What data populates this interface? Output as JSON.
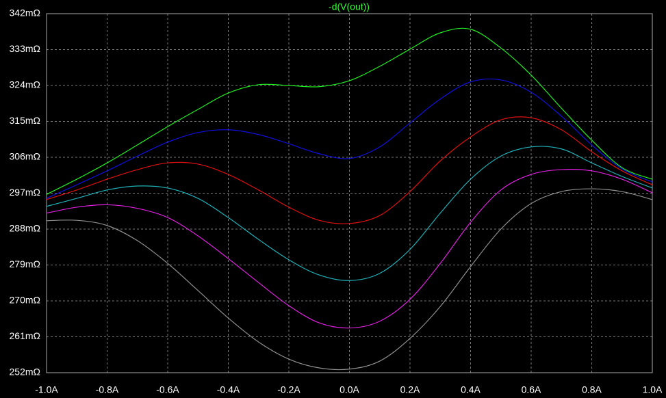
{
  "chart_data": {
    "type": "line",
    "title": "-d(V(out))",
    "x": [
      -1.0,
      -0.9,
      -0.8,
      -0.7,
      -0.6,
      -0.5,
      -0.4,
      -0.3,
      -0.2,
      -0.1,
      0.0,
      0.1,
      0.2,
      0.3,
      0.4,
      0.5,
      0.6,
      0.7,
      0.8,
      0.9,
      1.0
    ],
    "series": [
      {
        "color": "#22ee22",
        "values": [
          296.7,
          300.5,
          304.6,
          309.1,
          313.7,
          318.0,
          322.1,
          324.2,
          324.0,
          323.7,
          325.2,
          328.8,
          333.1,
          337.2,
          338.1,
          333.4,
          326.6,
          318.3,
          310.3,
          303.4,
          300.5
        ]
      },
      {
        "color": "#1010e0",
        "values": [
          295.7,
          299.1,
          302.6,
          306.3,
          309.8,
          312.2,
          312.9,
          311.7,
          309.4,
          306.9,
          305.7,
          308.6,
          314.6,
          320.6,
          324.9,
          325.4,
          322.3,
          316.3,
          309.1,
          303.1,
          299.8
        ]
      },
      {
        "color": "#e01010",
        "values": [
          295.4,
          297.8,
          300.5,
          302.9,
          304.6,
          304.3,
          301.7,
          297.8,
          293.5,
          290.2,
          289.4,
          291.4,
          297.4,
          305.1,
          311.1,
          315.4,
          315.9,
          312.9,
          307.4,
          302.6,
          299.1
        ]
      },
      {
        "color": "#20b0b8",
        "values": [
          293.7,
          295.7,
          297.8,
          298.8,
          298.3,
          295.7,
          290.9,
          285.4,
          280.3,
          276.5,
          275.1,
          276.9,
          282.9,
          292.0,
          300.5,
          306.3,
          308.6,
          308.1,
          304.6,
          301.2,
          298.3
        ]
      },
      {
        "color": "#e020e0",
        "values": [
          292.0,
          293.5,
          294.1,
          293.2,
          290.9,
          286.3,
          280.6,
          274.6,
          268.8,
          264.5,
          263.2,
          264.9,
          270.4,
          279.4,
          289.7,
          297.8,
          301.7,
          302.9,
          302.6,
          300.5,
          297.1
        ]
      },
      {
        "color": "#909090",
        "values": [
          290.1,
          290.2,
          288.9,
          285.1,
          279.4,
          272.6,
          265.7,
          259.7,
          255.4,
          253.2,
          252.9,
          254.9,
          260.6,
          268.6,
          278.6,
          288.0,
          294.4,
          297.4,
          298.1,
          297.4,
          295.4
        ]
      }
    ],
    "xlim": [
      -1.0,
      1.0
    ],
    "xticks": [
      {
        "value": -1.0,
        "label": "-1.0A"
      },
      {
        "value": -0.8,
        "label": "-0.8A"
      },
      {
        "value": -0.6,
        "label": "-0.6A"
      },
      {
        "value": -0.4,
        "label": "-0.4A"
      },
      {
        "value": -0.2,
        "label": "-0.2A"
      },
      {
        "value": 0.0,
        "label": "0.0A"
      },
      {
        "value": 0.2,
        "label": "0.2A"
      },
      {
        "value": 0.4,
        "label": "0.4A"
      },
      {
        "value": 0.6,
        "label": "0.6A"
      },
      {
        "value": 0.8,
        "label": "0.8A"
      },
      {
        "value": 1.0,
        "label": "1.0A"
      }
    ],
    "ylim": [
      252,
      342
    ],
    "yticks": [
      {
        "value": 252,
        "label": "252mΩ"
      },
      {
        "value": 261,
        "label": "261mΩ"
      },
      {
        "value": 270,
        "label": "270mΩ"
      },
      {
        "value": 279,
        "label": "279mΩ"
      },
      {
        "value": 288,
        "label": "288mΩ"
      },
      {
        "value": 297,
        "label": "297mΩ"
      },
      {
        "value": 306,
        "label": "306mΩ"
      },
      {
        "value": 315,
        "label": "315mΩ"
      },
      {
        "value": 324,
        "label": "324mΩ"
      },
      {
        "value": 333,
        "label": "333mΩ"
      },
      {
        "value": 342,
        "label": "342mΩ"
      }
    ],
    "grid": true
  }
}
